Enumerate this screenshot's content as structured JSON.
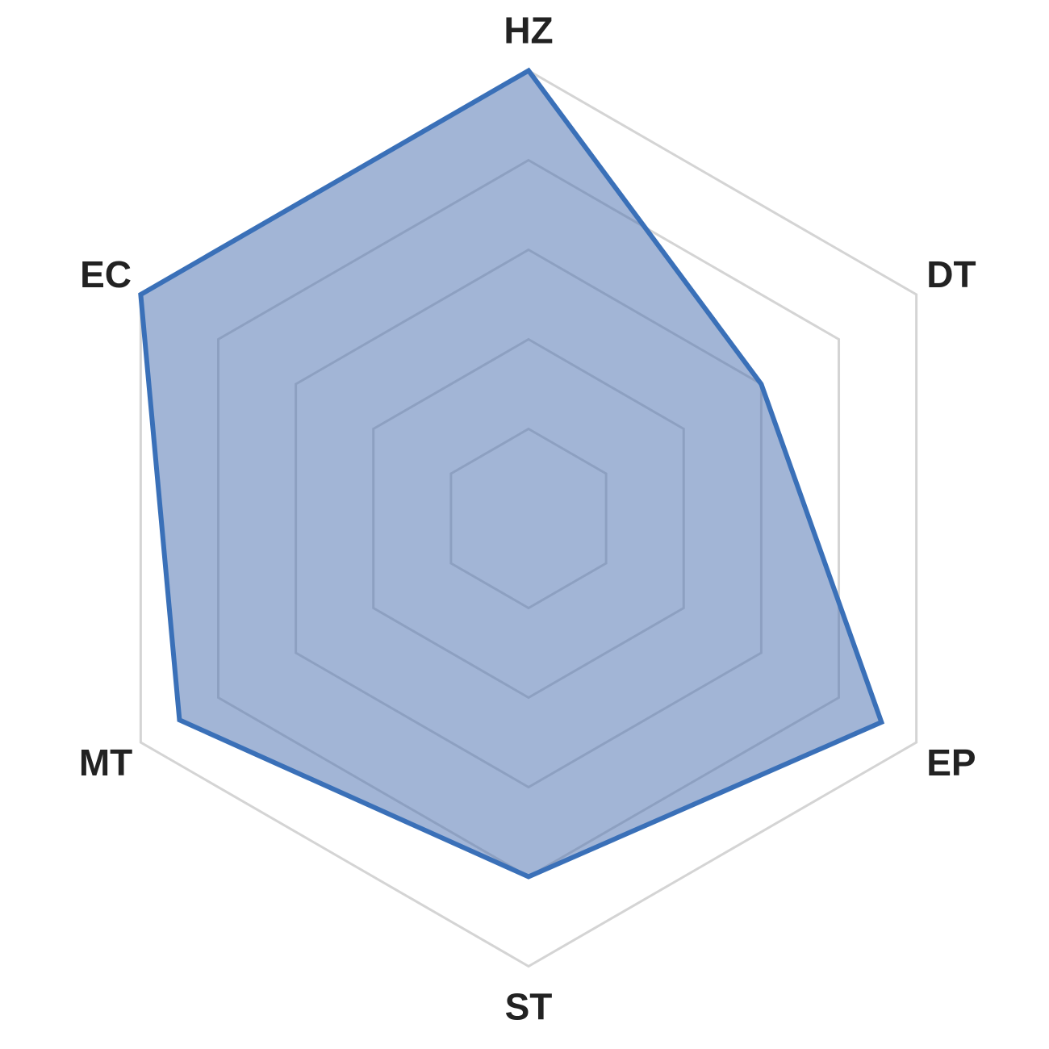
{
  "chart_data": {
    "type": "radar",
    "categories": [
      "HZ",
      "DT",
      "EP",
      "ST",
      "MT",
      "EC"
    ],
    "series": [
      {
        "values": [
          1.0,
          0.6,
          0.91,
          0.8,
          0.9,
          1.0
        ]
      }
    ],
    "rlim": [
      0,
      1
    ],
    "grid_rings": 5,
    "grid": true,
    "tick_labels_shown": false,
    "colors": {
      "fill": "#4c72b0",
      "stroke": "#3a70b8",
      "grid": "#d4d4d4",
      "label": "#222222"
    }
  }
}
